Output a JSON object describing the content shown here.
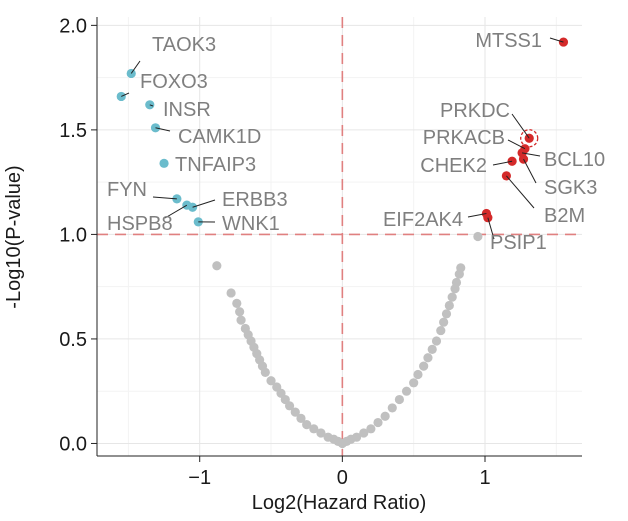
{
  "chart_data": {
    "type": "scatter",
    "title": "",
    "xlabel": "Log2(Hazard Ratio)",
    "ylabel": "-Log10(P-value)",
    "xlim": [
      -1.72,
      1.68
    ],
    "ylim": [
      -0.06,
      2.04
    ],
    "x_ticks": [
      -1,
      0,
      1
    ],
    "x_tick_labels": [
      "−1",
      "0",
      "1"
    ],
    "y_ticks": [
      0.0,
      0.5,
      1.0,
      1.5,
      2.0
    ],
    "y_tick_labels": [
      "0.0",
      "0.5",
      "1.0",
      "1.5",
      "2.0"
    ],
    "grid": true,
    "threshold_lines": {
      "x": 0,
      "y": 1.0
    },
    "colors": {
      "protective": "#6bbccc",
      "risk": "#d42a2a",
      "nonsignificant": "#c0c0c0",
      "threshold": "#e08080",
      "label": "#7f7f7f",
      "highlight_label": "#c0171f"
    },
    "significant_points": [
      {
        "gene": "TAOK3",
        "x": -1.48,
        "y": 1.77,
        "group": "protective"
      },
      {
        "gene": "FOXO3",
        "x": -1.55,
        "y": 1.66,
        "group": "protective"
      },
      {
        "gene": "INSR",
        "x": -1.35,
        "y": 1.62,
        "group": "protective"
      },
      {
        "gene": "CAMK1D",
        "x": -1.31,
        "y": 1.51,
        "group": "protective"
      },
      {
        "gene": "TNFAIP3",
        "x": -1.25,
        "y": 1.34,
        "group": "protective"
      },
      {
        "gene": "FYN",
        "x": -1.16,
        "y": 1.17,
        "group": "protective"
      },
      {
        "gene": "ERBB3",
        "x": -1.05,
        "y": 1.13,
        "group": "protective"
      },
      {
        "gene": "HSPB8",
        "x": -1.09,
        "y": 1.14,
        "group": "protective"
      },
      {
        "gene": "WNK1",
        "x": -1.01,
        "y": 1.06,
        "group": "protective"
      },
      {
        "gene": "MTSS1",
        "x": 1.55,
        "y": 1.92,
        "group": "risk"
      },
      {
        "gene": "PRKDC",
        "x": 1.31,
        "y": 1.46,
        "group": "risk",
        "highlight": true
      },
      {
        "gene": "PRKACB",
        "x": 1.28,
        "y": 1.41,
        "group": "risk"
      },
      {
        "gene": "BCL10",
        "x": 1.26,
        "y": 1.39,
        "group": "risk"
      },
      {
        "gene": "CHEK2",
        "x": 1.19,
        "y": 1.35,
        "group": "risk"
      },
      {
        "gene": "SGK3",
        "x": 1.27,
        "y": 1.36,
        "group": "risk"
      },
      {
        "gene": "B2M",
        "x": 1.15,
        "y": 1.28,
        "group": "risk"
      },
      {
        "gene": "EIF2AK4",
        "x": 1.01,
        "y": 1.1,
        "group": "risk"
      },
      {
        "gene": "PSIP1",
        "x": 1.02,
        "y": 1.08,
        "group": "risk"
      }
    ],
    "nonsignificant_points": [
      [
        -0.88,
        0.85
      ],
      [
        -0.78,
        0.72
      ],
      [
        -0.74,
        0.67
      ],
      [
        -0.72,
        0.63
      ],
      [
        -0.71,
        0.59
      ],
      [
        -0.68,
        0.55
      ],
      [
        -0.66,
        0.52
      ],
      [
        -0.64,
        0.49
      ],
      [
        -0.62,
        0.46
      ],
      [
        -0.6,
        0.43
      ],
      [
        -0.58,
        0.4
      ],
      [
        -0.56,
        0.37
      ],
      [
        -0.54,
        0.34
      ],
      [
        -0.5,
        0.3
      ],
      [
        -0.46,
        0.27
      ],
      [
        -0.43,
        0.24
      ],
      [
        -0.4,
        0.21
      ],
      [
        -0.37,
        0.18
      ],
      [
        -0.33,
        0.15
      ],
      [
        -0.29,
        0.12
      ],
      [
        -0.25,
        0.09
      ],
      [
        -0.2,
        0.07
      ],
      [
        -0.15,
        0.05
      ],
      [
        -0.1,
        0.03
      ],
      [
        -0.06,
        0.02
      ],
      [
        -0.03,
        0.01
      ],
      [
        0.0,
        0.0
      ],
      [
        0.03,
        0.01
      ],
      [
        0.06,
        0.02
      ],
      [
        0.1,
        0.03
      ],
      [
        0.15,
        0.05
      ],
      [
        0.2,
        0.07
      ],
      [
        0.25,
        0.1
      ],
      [
        0.3,
        0.13
      ],
      [
        0.35,
        0.17
      ],
      [
        0.4,
        0.21
      ],
      [
        0.45,
        0.25
      ],
      [
        0.5,
        0.29
      ],
      [
        0.53,
        0.33
      ],
      [
        0.57,
        0.37
      ],
      [
        0.6,
        0.41
      ],
      [
        0.63,
        0.45
      ],
      [
        0.66,
        0.49
      ],
      [
        0.69,
        0.54
      ],
      [
        0.71,
        0.58
      ],
      [
        0.73,
        0.62
      ],
      [
        0.75,
        0.66
      ],
      [
        0.77,
        0.7
      ],
      [
        0.79,
        0.74
      ],
      [
        0.8,
        0.77
      ],
      [
        0.82,
        0.81
      ],
      [
        0.83,
        0.84
      ],
      [
        0.95,
        0.99
      ]
    ]
  }
}
